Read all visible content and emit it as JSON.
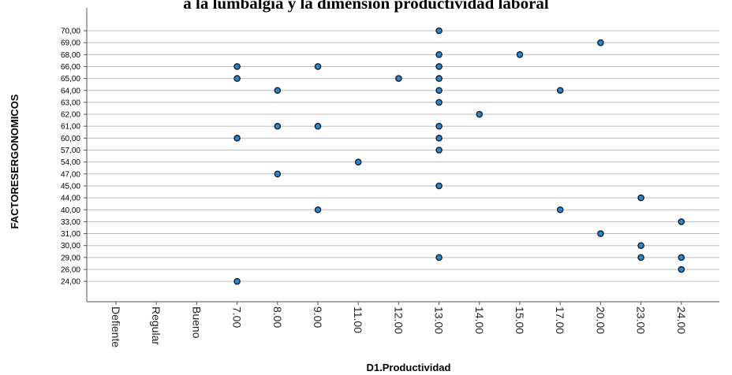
{
  "chart_data": {
    "type": "scatter",
    "title": "a la lumbalgia y la dimensión productividad laboral",
    "xlabel": "D1.Productividad",
    "ylabel": "FACTORESERGONOMICOS",
    "x_categories": [
      "Defiente",
      "Regular",
      "Bueno",
      "7.00",
      "8.00",
      "9.00",
      "11.00",
      "12.00",
      "13.00",
      "14.00",
      "15.00",
      "17.00",
      "20.00",
      "23.00",
      "24.00"
    ],
    "y_categories": [
      "70,00",
      "69,00",
      "68,00",
      "66,00",
      "65,00",
      "64,00",
      "63,00",
      "62,00",
      "61,00",
      "60,00",
      "57,00",
      "54,00",
      "47,00",
      "45,00",
      "44,00",
      "40,00",
      "33,00",
      "31,00",
      "30,00",
      "29,00",
      "26,00",
      "24,00"
    ],
    "points": [
      {
        "x": "13.00",
        "y": "70,00"
      },
      {
        "x": "20.00",
        "y": "69,00"
      },
      {
        "x": "13.00",
        "y": "68,00"
      },
      {
        "x": "15.00",
        "y": "68,00"
      },
      {
        "x": "7.00",
        "y": "66,00"
      },
      {
        "x": "9.00",
        "y": "66,00"
      },
      {
        "x": "13.00",
        "y": "66,00"
      },
      {
        "x": "7.00",
        "y": "65,00"
      },
      {
        "x": "12.00",
        "y": "65,00"
      },
      {
        "x": "13.00",
        "y": "65,00"
      },
      {
        "x": "8.00",
        "y": "64,00"
      },
      {
        "x": "13.00",
        "y": "64,00"
      },
      {
        "x": "17.00",
        "y": "64,00"
      },
      {
        "x": "13.00",
        "y": "63,00"
      },
      {
        "x": "14.00",
        "y": "62,00"
      },
      {
        "x": "8.00",
        "y": "61,00"
      },
      {
        "x": "9.00",
        "y": "61,00"
      },
      {
        "x": "13.00",
        "y": "61,00"
      },
      {
        "x": "7.00",
        "y": "60,00"
      },
      {
        "x": "13.00",
        "y": "60,00"
      },
      {
        "x": "13.00",
        "y": "57,00"
      },
      {
        "x": "11.00",
        "y": "54,00"
      },
      {
        "x": "8.00",
        "y": "47,00"
      },
      {
        "x": "13.00",
        "y": "45,00"
      },
      {
        "x": "23.00",
        "y": "44,00"
      },
      {
        "x": "9.00",
        "y": "40,00"
      },
      {
        "x": "17.00",
        "y": "40,00"
      },
      {
        "x": "24.00",
        "y": "33,00"
      },
      {
        "x": "20.00",
        "y": "31,00"
      },
      {
        "x": "23.00",
        "y": "30,00"
      },
      {
        "x": "13.00",
        "y": "29,00"
      },
      {
        "x": "23.00",
        "y": "29,00"
      },
      {
        "x": "24.00",
        "y": "29,00"
      },
      {
        "x": "24.00",
        "y": "26,00"
      },
      {
        "x": "7.00",
        "y": "24,00"
      }
    ],
    "grid": "horizontal",
    "point_color": "#2e86c8"
  }
}
